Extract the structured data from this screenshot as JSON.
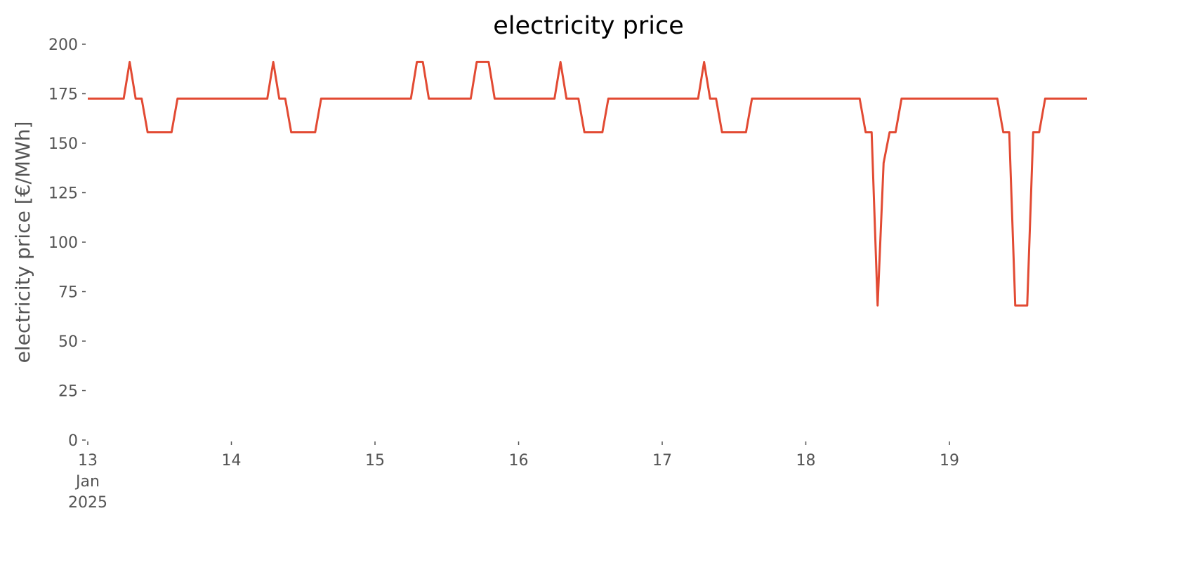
{
  "chart_data": {
    "type": "line",
    "title": "electricity price",
    "y_label": "electricity price [€/MWh]",
    "x": [
      "2025-01-13 00:00",
      "2025-01-13 01:00",
      "2025-01-13 02:00",
      "2025-01-13 03:00",
      "2025-01-13 04:00",
      "2025-01-13 05:00",
      "2025-01-13 06:00",
      "2025-01-13 07:00",
      "2025-01-13 08:00",
      "2025-01-13 09:00",
      "2025-01-13 10:00",
      "2025-01-13 11:00",
      "2025-01-13 12:00",
      "2025-01-13 13:00",
      "2025-01-13 14:00",
      "2025-01-13 15:00",
      "2025-01-13 16:00",
      "2025-01-13 17:00",
      "2025-01-13 18:00",
      "2025-01-13 19:00",
      "2025-01-13 20:00",
      "2025-01-13 21:00",
      "2025-01-13 22:00",
      "2025-01-13 23:00",
      "2025-01-14 00:00",
      "2025-01-14 01:00",
      "2025-01-14 02:00",
      "2025-01-14 03:00",
      "2025-01-14 04:00",
      "2025-01-14 05:00",
      "2025-01-14 06:00",
      "2025-01-14 07:00",
      "2025-01-14 08:00",
      "2025-01-14 09:00",
      "2025-01-14 10:00",
      "2025-01-14 11:00",
      "2025-01-14 12:00",
      "2025-01-14 13:00",
      "2025-01-14 14:00",
      "2025-01-14 15:00",
      "2025-01-14 16:00",
      "2025-01-14 17:00",
      "2025-01-14 18:00",
      "2025-01-14 19:00",
      "2025-01-14 20:00",
      "2025-01-14 21:00",
      "2025-01-14 22:00",
      "2025-01-14 23:00",
      "2025-01-15 00:00",
      "2025-01-15 01:00",
      "2025-01-15 02:00",
      "2025-01-15 03:00",
      "2025-01-15 04:00",
      "2025-01-15 05:00",
      "2025-01-15 06:00",
      "2025-01-15 07:00",
      "2025-01-15 08:00",
      "2025-01-15 09:00",
      "2025-01-15 10:00",
      "2025-01-15 11:00",
      "2025-01-15 12:00",
      "2025-01-15 13:00",
      "2025-01-15 14:00",
      "2025-01-15 15:00",
      "2025-01-15 16:00",
      "2025-01-15 17:00",
      "2025-01-15 18:00",
      "2025-01-15 19:00",
      "2025-01-15 20:00",
      "2025-01-15 21:00",
      "2025-01-15 22:00",
      "2025-01-15 23:00",
      "2025-01-16 00:00",
      "2025-01-16 01:00",
      "2025-01-16 02:00",
      "2025-01-16 03:00",
      "2025-01-16 04:00",
      "2025-01-16 05:00",
      "2025-01-16 06:00",
      "2025-01-16 07:00",
      "2025-01-16 08:00",
      "2025-01-16 09:00",
      "2025-01-16 10:00",
      "2025-01-16 11:00",
      "2025-01-16 12:00",
      "2025-01-16 13:00",
      "2025-01-16 14:00",
      "2025-01-16 15:00",
      "2025-01-16 16:00",
      "2025-01-16 17:00",
      "2025-01-16 18:00",
      "2025-01-16 19:00",
      "2025-01-16 20:00",
      "2025-01-16 21:00",
      "2025-01-16 22:00",
      "2025-01-16 23:00",
      "2025-01-17 00:00",
      "2025-01-17 01:00",
      "2025-01-17 02:00",
      "2025-01-17 03:00",
      "2025-01-17 04:00",
      "2025-01-17 05:00",
      "2025-01-17 06:00",
      "2025-01-17 07:00",
      "2025-01-17 08:00",
      "2025-01-17 09:00",
      "2025-01-17 10:00",
      "2025-01-17 11:00",
      "2025-01-17 12:00",
      "2025-01-17 13:00",
      "2025-01-17 14:00",
      "2025-01-17 15:00",
      "2025-01-17 16:00",
      "2025-01-17 17:00",
      "2025-01-17 18:00",
      "2025-01-17 19:00",
      "2025-01-17 20:00",
      "2025-01-17 21:00",
      "2025-01-17 22:00",
      "2025-01-17 23:00",
      "2025-01-18 00:00",
      "2025-01-18 01:00",
      "2025-01-18 02:00",
      "2025-01-18 03:00",
      "2025-01-18 04:00",
      "2025-01-18 05:00",
      "2025-01-18 06:00",
      "2025-01-18 07:00",
      "2025-01-18 08:00",
      "2025-01-18 09:00",
      "2025-01-18 10:00",
      "2025-01-18 11:00",
      "2025-01-18 12:00",
      "2025-01-18 13:00",
      "2025-01-18 14:00",
      "2025-01-18 15:00",
      "2025-01-18 16:00",
      "2025-01-18 17:00",
      "2025-01-18 18:00",
      "2025-01-18 19:00",
      "2025-01-18 20:00",
      "2025-01-18 21:00",
      "2025-01-18 22:00",
      "2025-01-18 23:00",
      "2025-01-19 00:00",
      "2025-01-19 01:00",
      "2025-01-19 02:00",
      "2025-01-19 03:00",
      "2025-01-19 04:00",
      "2025-01-19 05:00",
      "2025-01-19 06:00",
      "2025-01-19 07:00",
      "2025-01-19 08:00",
      "2025-01-19 09:00",
      "2025-01-19 10:00",
      "2025-01-19 11:00",
      "2025-01-19 12:00",
      "2025-01-19 13:00",
      "2025-01-19 14:00",
      "2025-01-19 15:00",
      "2025-01-19 16:00",
      "2025-01-19 17:00",
      "2025-01-19 18:00",
      "2025-01-19 19:00",
      "2025-01-19 20:00",
      "2025-01-19 21:00",
      "2025-01-19 22:00",
      "2025-01-19 23:00"
    ],
    "series": [
      {
        "color": "#e24a33",
        "values": [
          172.5,
          172.5,
          172.5,
          172.5,
          172.5,
          172.5,
          172.5,
          191,
          172.5,
          172.5,
          155.5,
          155.5,
          155.5,
          155.5,
          155.5,
          172.5,
          172.5,
          172.5,
          172.5,
          172.5,
          172.5,
          172.5,
          172.5,
          172.5,
          172.5,
          172.5,
          172.5,
          172.5,
          172.5,
          172.5,
          172.5,
          191,
          172.5,
          172.5,
          155.5,
          155.5,
          155.5,
          155.5,
          155.5,
          172.5,
          172.5,
          172.5,
          172.5,
          172.5,
          172.5,
          172.5,
          172.5,
          172.5,
          172.5,
          172.5,
          172.5,
          172.5,
          172.5,
          172.5,
          172.5,
          191,
          191,
          172.5,
          172.5,
          172.5,
          172.5,
          172.5,
          172.5,
          172.5,
          172.5,
          191,
          191,
          191,
          172.5,
          172.5,
          172.5,
          172.5,
          172.5,
          172.5,
          172.5,
          172.5,
          172.5,
          172.5,
          172.5,
          191,
          172.5,
          172.5,
          172.5,
          155.5,
          155.5,
          155.5,
          155.5,
          172.5,
          172.5,
          172.5,
          172.5,
          172.5,
          172.5,
          172.5,
          172.5,
          172.5,
          172.5,
          172.5,
          172.5,
          172.5,
          172.5,
          172.5,
          172.5,
          191,
          172.5,
          172.5,
          155.5,
          155.5,
          155.5,
          155.5,
          155.5,
          172.5,
          172.5,
          172.5,
          172.5,
          172.5,
          172.5,
          172.5,
          172.5,
          172.5,
          172.5,
          172.5,
          172.5,
          172.5,
          172.5,
          172.5,
          172.5,
          172.5,
          172.5,
          172.5,
          155.5,
          155.5,
          68,
          140,
          155.5,
          155.5,
          172.5,
          172.5,
          172.5,
          172.5,
          172.5,
          172.5,
          172.5,
          172.5,
          172.5,
          172.5,
          172.5,
          172.5,
          172.5,
          172.5,
          172.5,
          172.5,
          172.5,
          155.5,
          155.5,
          68,
          68,
          68,
          155.5,
          155.5,
          172.5,
          172.5,
          172.5,
          172.5,
          172.5,
          172.5,
          172.5,
          172.5
        ]
      }
    ],
    "xlim": [
      "2025-01-13 00:00",
      "2025-01-19 23:00"
    ],
    "xticks": [
      {
        "value": "2025-01-13 00:00",
        "label": "13",
        "sublabels": [
          "Jan",
          "2025"
        ]
      },
      {
        "value": "2025-01-14 00:00",
        "label": "14"
      },
      {
        "value": "2025-01-15 00:00",
        "label": "15"
      },
      {
        "value": "2025-01-16 00:00",
        "label": "16"
      },
      {
        "value": "2025-01-17 00:00",
        "label": "17"
      },
      {
        "value": "2025-01-18 00:00",
        "label": "18"
      },
      {
        "value": "2025-01-19 00:00",
        "label": "19"
      }
    ],
    "ylim": [
      0,
      200
    ],
    "yticks": [
      0,
      25,
      50,
      75,
      100,
      125,
      150,
      175,
      200
    ]
  }
}
